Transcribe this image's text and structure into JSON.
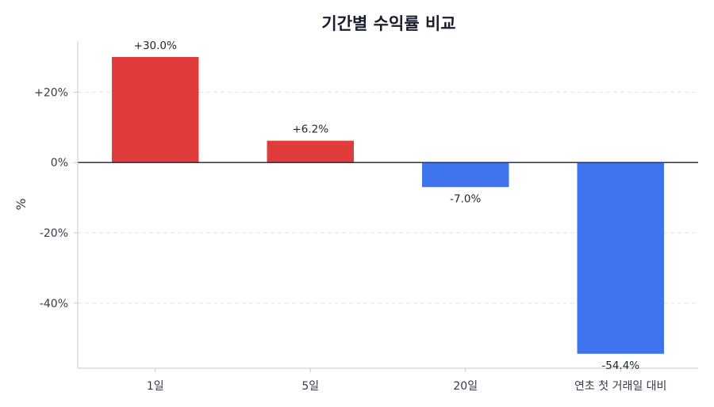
{
  "chart_data": {
    "type": "bar",
    "title": "기간별 수익률 비교",
    "xlabel": "",
    "ylabel": "%",
    "categories": [
      "1일",
      "5일",
      "20일",
      "연초 첫 거래일 대비"
    ],
    "values": [
      30.0,
      6.2,
      -7.0,
      -54.4
    ],
    "data_labels": [
      "+30.0%",
      "+6.2%",
      "-7.0%",
      "-54.4%"
    ],
    "yticks": [
      20,
      0,
      -20,
      -40
    ],
    "ytick_labels": [
      "+20%",
      "0%",
      "-20%",
      "-40%"
    ],
    "ylim": [
      -58.5,
      34.5
    ],
    "grid": "horizontal-dashed",
    "colors": {
      "positive": "#e03c3c",
      "negative": "#3e74ee",
      "zero_line": "#2c3444",
      "grid": "#dfe3e8",
      "axis": "#c4c8ce"
    }
  }
}
